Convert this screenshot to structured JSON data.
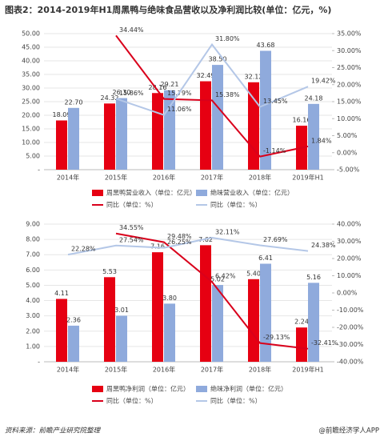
{
  "title": "图表2：2014-2019年H1周黑鸭与绝味食品营收以及净利润比较(单位：亿元，%)",
  "source": "资料来源：前瞻产业研究院整理",
  "credit": "@前瞻经济学人APP",
  "chart_data": [
    {
      "type": "bar",
      "categories": [
        "2014年",
        "2015年",
        "2016年",
        "2017年",
        "2018年",
        "2019年H1"
      ],
      "ylim": [
        0,
        50
      ],
      "yticks": [
        {
          "value": 0,
          "label": "-"
        },
        {
          "value": 5,
          "label": "5.00"
        },
        {
          "value": 10,
          "label": "10.00"
        },
        {
          "value": 15,
          "label": "15.00"
        },
        {
          "value": 20,
          "label": "20.00"
        },
        {
          "value": 25,
          "label": "25.00"
        },
        {
          "value": 30,
          "label": "30.00"
        },
        {
          "value": 35,
          "label": "35.00"
        },
        {
          "value": 40,
          "label": "40.00"
        },
        {
          "value": 45,
          "label": "45.00"
        },
        {
          "value": 50,
          "label": "50.00"
        }
      ],
      "y2lim": [
        -5,
        35
      ],
      "y2ticks": [
        {
          "value": -5,
          "label": "-5.00%"
        },
        {
          "value": 0,
          "label": "0.00%"
        },
        {
          "value": 5,
          "label": "5.00%"
        },
        {
          "value": 10,
          "label": "10.00%"
        },
        {
          "value": 15,
          "label": "15.00%"
        },
        {
          "value": 20,
          "label": "20.00%"
        },
        {
          "value": 25,
          "label": "25.00%"
        },
        {
          "value": 30,
          "label": "30.00%"
        },
        {
          "value": 35,
          "label": "35.00%"
        }
      ],
      "grid": true,
      "series": [
        {
          "name": "周黑鸭营业收入（单位：亿元）",
          "kind": "bar",
          "color": "#e60012",
          "values": [
            18.09,
            24.32,
            28.16,
            32.49,
            32.12,
            16.16
          ],
          "value_labels": [
            "18.09",
            "24.32",
            "28.16",
            "32.49",
            "32.12",
            "16.16"
          ]
        },
        {
          "name": "绝味营业收入（单位：亿元）",
          "kind": "bar",
          "color": "#8faadc",
          "values": [
            22.7,
            26.3,
            29.21,
            38.5,
            43.68,
            24.18
          ],
          "value_labels": [
            "22.70",
            "26.30",
            "29.21",
            "38.50",
            "43.68",
            "24.18"
          ]
        },
        {
          "name": "同比（单位：%）",
          "kind": "line",
          "axis": "y2",
          "color": "#d9001b",
          "values": [
            null,
            34.44,
            15.79,
            15.38,
            -1.14,
            1.84
          ],
          "value_labels": [
            null,
            "34.44%",
            "15.79%",
            "15.38%",
            "-1.14%",
            "1.84%"
          ]
        },
        {
          "name": "同比（单位：%）",
          "kind": "line",
          "axis": "y2",
          "color": "#b4c7e7",
          "values": [
            null,
            15.86,
            11.06,
            31.8,
            13.45,
            19.42
          ],
          "value_labels": [
            null,
            "15.86%",
            "11.06%",
            "31.80%",
            "13.45%",
            "19.42%"
          ]
        }
      ]
    },
    {
      "type": "bar",
      "categories": [
        "2014年",
        "2015年",
        "2016年",
        "2017年",
        "2018年",
        "2019年H1"
      ],
      "ylim": [
        0,
        9
      ],
      "yticks": [
        {
          "value": 0,
          "label": "-"
        },
        {
          "value": 1,
          "label": "1.00"
        },
        {
          "value": 2,
          "label": "2.00"
        },
        {
          "value": 3,
          "label": "3.00"
        },
        {
          "value": 4,
          "label": "4.00"
        },
        {
          "value": 5,
          "label": "5.00"
        },
        {
          "value": 6,
          "label": "6.00"
        },
        {
          "value": 7,
          "label": "7.00"
        },
        {
          "value": 8,
          "label": "8.00"
        },
        {
          "value": 9,
          "label": "9.00"
        }
      ],
      "y2lim": [
        -40,
        40
      ],
      "y2ticks": [
        {
          "value": -40,
          "label": "-40.00%"
        },
        {
          "value": -30,
          "label": "-30.00%"
        },
        {
          "value": -20,
          "label": "-20.00%"
        },
        {
          "value": -10,
          "label": "-10.00%"
        },
        {
          "value": 0,
          "label": "0.00%"
        },
        {
          "value": 10,
          "label": "10.00%"
        },
        {
          "value": 20,
          "label": "20.00%"
        },
        {
          "value": 30,
          "label": "30.00%"
        },
        {
          "value": 40,
          "label": "40.00%"
        }
      ],
      "grid": true,
      "series": [
        {
          "name": "周黑鸭净利润（单位：亿元）",
          "kind": "bar",
          "color": "#e60012",
          "values": [
            4.11,
            5.53,
            7.16,
            7.62,
            5.4,
            2.24
          ],
          "value_labels": [
            "4.11",
            "5.53",
            "7.16",
            "7.62",
            "5.40",
            "2.24"
          ]
        },
        {
          "name": "绝味净利润（单位：亿元）",
          "kind": "bar",
          "color": "#8faadc",
          "values": [
            2.36,
            3.01,
            3.8,
            5.02,
            6.41,
            5.16
          ],
          "value_labels": [
            "2.36",
            "3.01",
            "3.80",
            "5.02",
            "6.41",
            "5.16"
          ]
        },
        {
          "name": "同比（单位：%）",
          "kind": "line",
          "axis": "y2",
          "color": "#d9001b",
          "values": [
            null,
            34.55,
            29.48,
            6.42,
            -29.13,
            -32.41
          ],
          "value_labels": [
            null,
            "34.55%",
            "29.48%",
            "6.42%",
            "-29.13%",
            "-32.41%"
          ]
        },
        {
          "name": "同比（单位：%）",
          "kind": "line",
          "axis": "y2",
          "color": "#b4c7e7",
          "values": [
            22.28,
            27.54,
            26.25,
            32.11,
            27.69,
            24.38
          ],
          "value_labels": [
            "22.28%",
            "27.54%",
            "26.25%",
            "32.11%",
            "27.69%",
            "24.38%"
          ]
        }
      ]
    }
  ]
}
